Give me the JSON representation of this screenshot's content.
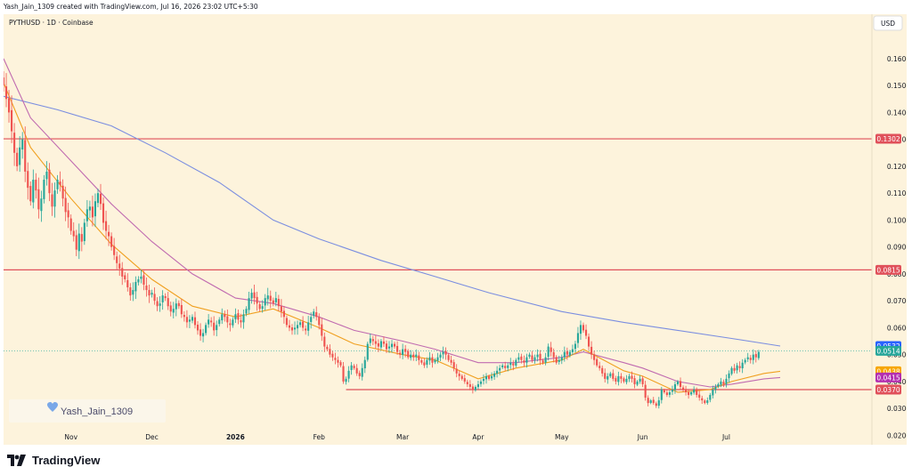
{
  "header": {
    "caption": "Yash_Jain_1309 created with TradingView.com, Jul 16, 2026 23:02 UTC+5:30"
  },
  "footer": {
    "brand": "TradingView"
  },
  "colors": {
    "background": "#fdf3dc",
    "up": "#26a69a",
    "down": "#ef5350",
    "ema_fast": "#f0a020",
    "ema_mid": "#c06bb0",
    "ema_slow": "#7b8ee0",
    "levels": "#e0505a"
  },
  "chart_data": {
    "type": "candlestick",
    "title": "PYTHUSD · 1D · Coinbase",
    "currency": "USD",
    "watermark": "Yash_Jain_1309",
    "ylim": [
      0.0165,
      0.1765
    ],
    "y_ticks": [
      "0.1600",
      "0.1500",
      "0.1400",
      "0.1300",
      "0.1200",
      "0.1100",
      "0.1000",
      "0.0900",
      "0.0800",
      "0.0700",
      "0.0600",
      "0.0500",
      "0.0400",
      "0.0300",
      "0.0200"
    ],
    "x_ticks": [
      "Nov",
      "Dec",
      "2026",
      "Feb",
      "Mar",
      "Apr",
      "May",
      "Jun",
      "Jul"
    ],
    "x_range_days": [
      0,
      322
    ],
    "x_tick_days": [
      25,
      55,
      86,
      117,
      148,
      176,
      207,
      237,
      268
    ],
    "horizontal_levels": [
      {
        "value": 0.1302,
        "label": "0.1302"
      },
      {
        "value": 0.0815,
        "label": "0.0815"
      },
      {
        "value": 0.037,
        "label": "0.0370",
        "from_day": 127
      }
    ],
    "price_tags": [
      {
        "value": 0.0532,
        "label": "0.0532",
        "color": "#2962ff"
      },
      {
        "value": 0.0514,
        "label": "0.0514",
        "color": "#26a69a"
      },
      {
        "value": 0.0438,
        "label": "0.0438",
        "color": "#f7a600"
      },
      {
        "value": 0.0415,
        "label": "0.0415",
        "color": "#b42fb0"
      },
      {
        "value": 0.037,
        "label": "0.0370",
        "color": "#e0505a"
      }
    ],
    "closes": [
      0.15,
      0.145,
      0.14,
      0.133,
      0.125,
      0.12,
      0.127,
      0.13,
      0.118,
      0.112,
      0.107,
      0.115,
      0.111,
      0.104,
      0.108,
      0.115,
      0.118,
      0.11,
      0.105,
      0.111,
      0.115,
      0.113,
      0.108,
      0.103,
      0.101,
      0.096,
      0.094,
      0.089,
      0.095,
      0.092,
      0.099,
      0.104,
      0.105,
      0.101,
      0.107,
      0.11,
      0.106,
      0.099,
      0.096,
      0.094,
      0.09,
      0.087,
      0.084,
      0.082,
      0.079,
      0.078,
      0.075,
      0.072,
      0.074,
      0.077,
      0.078,
      0.079,
      0.076,
      0.074,
      0.072,
      0.073,
      0.07,
      0.068,
      0.069,
      0.072,
      0.071,
      0.068,
      0.066,
      0.067,
      0.069,
      0.068,
      0.065,
      0.064,
      0.062,
      0.063,
      0.064,
      0.061,
      0.059,
      0.057,
      0.058,
      0.061,
      0.063,
      0.062,
      0.059,
      0.061,
      0.063,
      0.065,
      0.064,
      0.062,
      0.061,
      0.063,
      0.065,
      0.063,
      0.062,
      0.065,
      0.067,
      0.071,
      0.073,
      0.071,
      0.069,
      0.067,
      0.068,
      0.071,
      0.072,
      0.07,
      0.069,
      0.071,
      0.068,
      0.066,
      0.064,
      0.061,
      0.06,
      0.059,
      0.06,
      0.061,
      0.062,
      0.06,
      0.059,
      0.062,
      0.064,
      0.066,
      0.064,
      0.061,
      0.057,
      0.053,
      0.052,
      0.05,
      0.049,
      0.048,
      0.047,
      0.046,
      0.04,
      0.041,
      0.044,
      0.046,
      0.045,
      0.043,
      0.042,
      0.045,
      0.048,
      0.054,
      0.056,
      0.055,
      0.054,
      0.053,
      0.055,
      0.054,
      0.052,
      0.053,
      0.054,
      0.053,
      0.051,
      0.05,
      0.052,
      0.051,
      0.049,
      0.05,
      0.049,
      0.05,
      0.048,
      0.047,
      0.046,
      0.048,
      0.049,
      0.047,
      0.048,
      0.049,
      0.05,
      0.051,
      0.05,
      0.048,
      0.047,
      0.045,
      0.043,
      0.042,
      0.041,
      0.04,
      0.039,
      0.038,
      0.037,
      0.038,
      0.039,
      0.04,
      0.041,
      0.042,
      0.041,
      0.042,
      0.043,
      0.044,
      0.045,
      0.046,
      0.045,
      0.046,
      0.047,
      0.046,
      0.048,
      0.049,
      0.048,
      0.047,
      0.049,
      0.05,
      0.048,
      0.049,
      0.05,
      0.048,
      0.047,
      0.049,
      0.053,
      0.051,
      0.049,
      0.047,
      0.048,
      0.049,
      0.051,
      0.05,
      0.051,
      0.052,
      0.054,
      0.058,
      0.061,
      0.059,
      0.057,
      0.053,
      0.05,
      0.048,
      0.046,
      0.045,
      0.043,
      0.041,
      0.042,
      0.043,
      0.041,
      0.04,
      0.042,
      0.041,
      0.04,
      0.041,
      0.042,
      0.041,
      0.039,
      0.04,
      0.041,
      0.039,
      0.034,
      0.032,
      0.033,
      0.032,
      0.031,
      0.033,
      0.037,
      0.036,
      0.035,
      0.036,
      0.037,
      0.039,
      0.04,
      0.038,
      0.037,
      0.036,
      0.035,
      0.036,
      0.037,
      0.035,
      0.034,
      0.033,
      0.032,
      0.033,
      0.035,
      0.037,
      0.038,
      0.039,
      0.04,
      0.039,
      0.041,
      0.043,
      0.045,
      0.044,
      0.046,
      0.045,
      0.047,
      0.048,
      0.049,
      0.048,
      0.05,
      0.049,
      0.051
    ],
    "ema_fast_points": [
      [
        0,
        0.151
      ],
      [
        10,
        0.127
      ],
      [
        25,
        0.108
      ],
      [
        40,
        0.091
      ],
      [
        55,
        0.078
      ],
      [
        70,
        0.068
      ],
      [
        86,
        0.064
      ],
      [
        100,
        0.067
      ],
      [
        117,
        0.06
      ],
      [
        130,
        0.054
      ],
      [
        148,
        0.05
      ],
      [
        160,
        0.048
      ],
      [
        176,
        0.041
      ],
      [
        190,
        0.045
      ],
      [
        207,
        0.048
      ],
      [
        215,
        0.052
      ],
      [
        230,
        0.044
      ],
      [
        237,
        0.042
      ],
      [
        250,
        0.036
      ],
      [
        262,
        0.037
      ],
      [
        270,
        0.04
      ],
      [
        282,
        0.043
      ],
      [
        288,
        0.0438
      ]
    ],
    "ema_mid_points": [
      [
        0,
        0.16
      ],
      [
        10,
        0.138
      ],
      [
        25,
        0.122
      ],
      [
        40,
        0.106
      ],
      [
        55,
        0.092
      ],
      [
        70,
        0.08
      ],
      [
        86,
        0.071
      ],
      [
        100,
        0.069
      ],
      [
        117,
        0.064
      ],
      [
        130,
        0.059
      ],
      [
        148,
        0.055
      ],
      [
        160,
        0.052
      ],
      [
        176,
        0.047
      ],
      [
        190,
        0.047
      ],
      [
        207,
        0.049
      ],
      [
        215,
        0.051
      ],
      [
        230,
        0.047
      ],
      [
        237,
        0.045
      ],
      [
        250,
        0.04
      ],
      [
        262,
        0.038
      ],
      [
        270,
        0.039
      ],
      [
        282,
        0.041
      ],
      [
        288,
        0.0415
      ]
    ],
    "ema_slow_points": [
      [
        0,
        0.146
      ],
      [
        20,
        0.141
      ],
      [
        40,
        0.135
      ],
      [
        60,
        0.125
      ],
      [
        80,
        0.114
      ],
      [
        100,
        0.1
      ],
      [
        117,
        0.093
      ],
      [
        140,
        0.085
      ],
      [
        160,
        0.079
      ],
      [
        180,
        0.073
      ],
      [
        207,
        0.066
      ],
      [
        230,
        0.062
      ],
      [
        250,
        0.059
      ],
      [
        270,
        0.056
      ],
      [
        288,
        0.0532
      ]
    ]
  }
}
